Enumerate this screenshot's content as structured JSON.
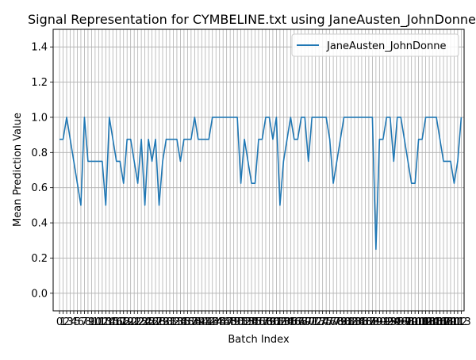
{
  "chart_data": {
    "type": "line",
    "title": "Signal Representation for CYMBELINE.txt using JaneAusten_JohnDonne",
    "xlabel": "Batch Index",
    "ylabel": "Mean Prediction Value",
    "xlim": [
      -1.8,
      113.8
    ],
    "ylim": [
      -0.1,
      1.5
    ],
    "grid": true,
    "legend_loc": "upper right",
    "yticks": [
      0.0,
      0.2,
      0.4,
      0.6,
      0.8,
      1.0,
      1.2,
      1.4
    ],
    "ytick_labels": [
      "0.0",
      "0.2",
      "0.4",
      "0.6",
      "0.8",
      "1.0",
      "1.2",
      "1.4"
    ],
    "xtick_labels": [
      "0",
      "1",
      "2",
      "3",
      "4",
      "5",
      "6",
      "7",
      "8",
      "9",
      "10",
      "11",
      "12",
      "13",
      "14",
      "15",
      "16",
      "17",
      "18",
      "19",
      "20",
      "21",
      "22",
      "23",
      "24",
      "25",
      "26",
      "27",
      "28",
      "29",
      "30",
      "31",
      "32",
      "33",
      "34",
      "35",
      "36",
      "37",
      "38",
      "39",
      "40",
      "41",
      "42",
      "43",
      "44",
      "45",
      "46",
      "47",
      "48",
      "49",
      "50",
      "51",
      "52",
      "53",
      "54",
      "55",
      "56",
      "57",
      "58",
      "59",
      "60",
      "61",
      "62",
      "63",
      "64",
      "65",
      "66",
      "67",
      "68",
      "69",
      "70",
      "71",
      "72",
      "73",
      "74",
      "75",
      "76",
      "77",
      "78",
      "79",
      "80",
      "81",
      "82",
      "83",
      "84",
      "85",
      "86",
      "87",
      "88",
      "89",
      "90",
      "91",
      "92",
      "93",
      "94",
      "95",
      "96",
      "97",
      "98",
      "99",
      "100",
      "101",
      "102",
      "103",
      "104",
      "105",
      "106",
      "107",
      "108",
      "109",
      "110",
      "111",
      "112",
      "113"
    ],
    "series": [
      {
        "name": "JaneAusten_JohnDonne",
        "color": "#1f77b4",
        "values": [
          0.875,
          0.875,
          1.0,
          0.875,
          0.75,
          0.625,
          0.5,
          1.0,
          0.75,
          0.75,
          0.75,
          0.75,
          0.75,
          0.5,
          1.0,
          0.875,
          0.75,
          0.75,
          0.625,
          0.875,
          0.875,
          0.75,
          0.625,
          0.875,
          0.5,
          0.875,
          0.75,
          0.875,
          0.5,
          0.75,
          0.875,
          0.875,
          0.875,
          0.875,
          0.75,
          0.875,
          0.875,
          0.875,
          1.0,
          0.875,
          0.875,
          0.875,
          0.875,
          1.0,
          1.0,
          1.0,
          1.0,
          1.0,
          1.0,
          1.0,
          1.0,
          0.625,
          0.875,
          0.75,
          0.625,
          0.625,
          0.875,
          0.875,
          1.0,
          1.0,
          0.875,
          1.0,
          0.5,
          0.75,
          0.875,
          1.0,
          0.875,
          0.875,
          1.0,
          1.0,
          0.75,
          1.0,
          1.0,
          1.0,
          1.0,
          1.0,
          0.875,
          0.625,
          0.75,
          0.875,
          1.0,
          1.0,
          1.0,
          1.0,
          1.0,
          1.0,
          1.0,
          1.0,
          1.0,
          0.25,
          0.875,
          0.875,
          1.0,
          1.0,
          0.75,
          1.0,
          1.0,
          0.875,
          0.75,
          0.625,
          0.625,
          0.875,
          0.875,
          1.0,
          1.0,
          1.0,
          1.0,
          0.875,
          0.75,
          0.75,
          0.75,
          0.625,
          0.75,
          1.0
        ]
      }
    ]
  }
}
